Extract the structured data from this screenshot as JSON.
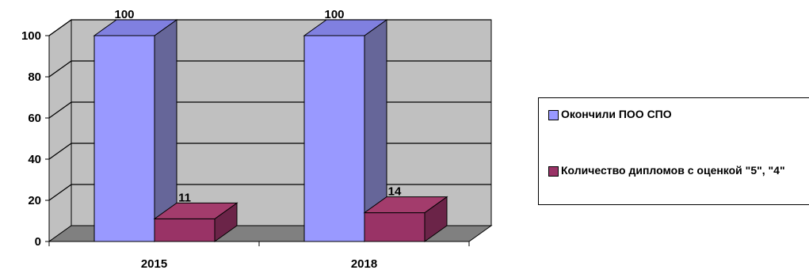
{
  "chart_data": {
    "type": "bar",
    "categories": [
      "2015",
      "2018"
    ],
    "series": [
      {
        "name": "Окончили ПОО СПО",
        "values": [
          100,
          100
        ],
        "color": "#9999ff",
        "side_color": "#666699",
        "top_color": "#8080e0"
      },
      {
        "name": "Количество дипломов с оценкой \"5\", \"4\"",
        "values": [
          11,
          14
        ],
        "color": "#993366",
        "side_color": "#6b2448",
        "top_color": "#a33c6c"
      }
    ],
    "data_labels": [
      [
        "100",
        "100"
      ],
      [
        "11",
        "14"
      ]
    ],
    "y_ticks": [
      "0",
      "20",
      "40",
      "60",
      "80",
      "100"
    ],
    "ylim": [
      0,
      100
    ],
    "title": "",
    "xlabel": "",
    "ylabel": "",
    "grid": true,
    "legend_position": "right",
    "wall_color": "#c0c0c0",
    "floor_color": "#808080"
  }
}
